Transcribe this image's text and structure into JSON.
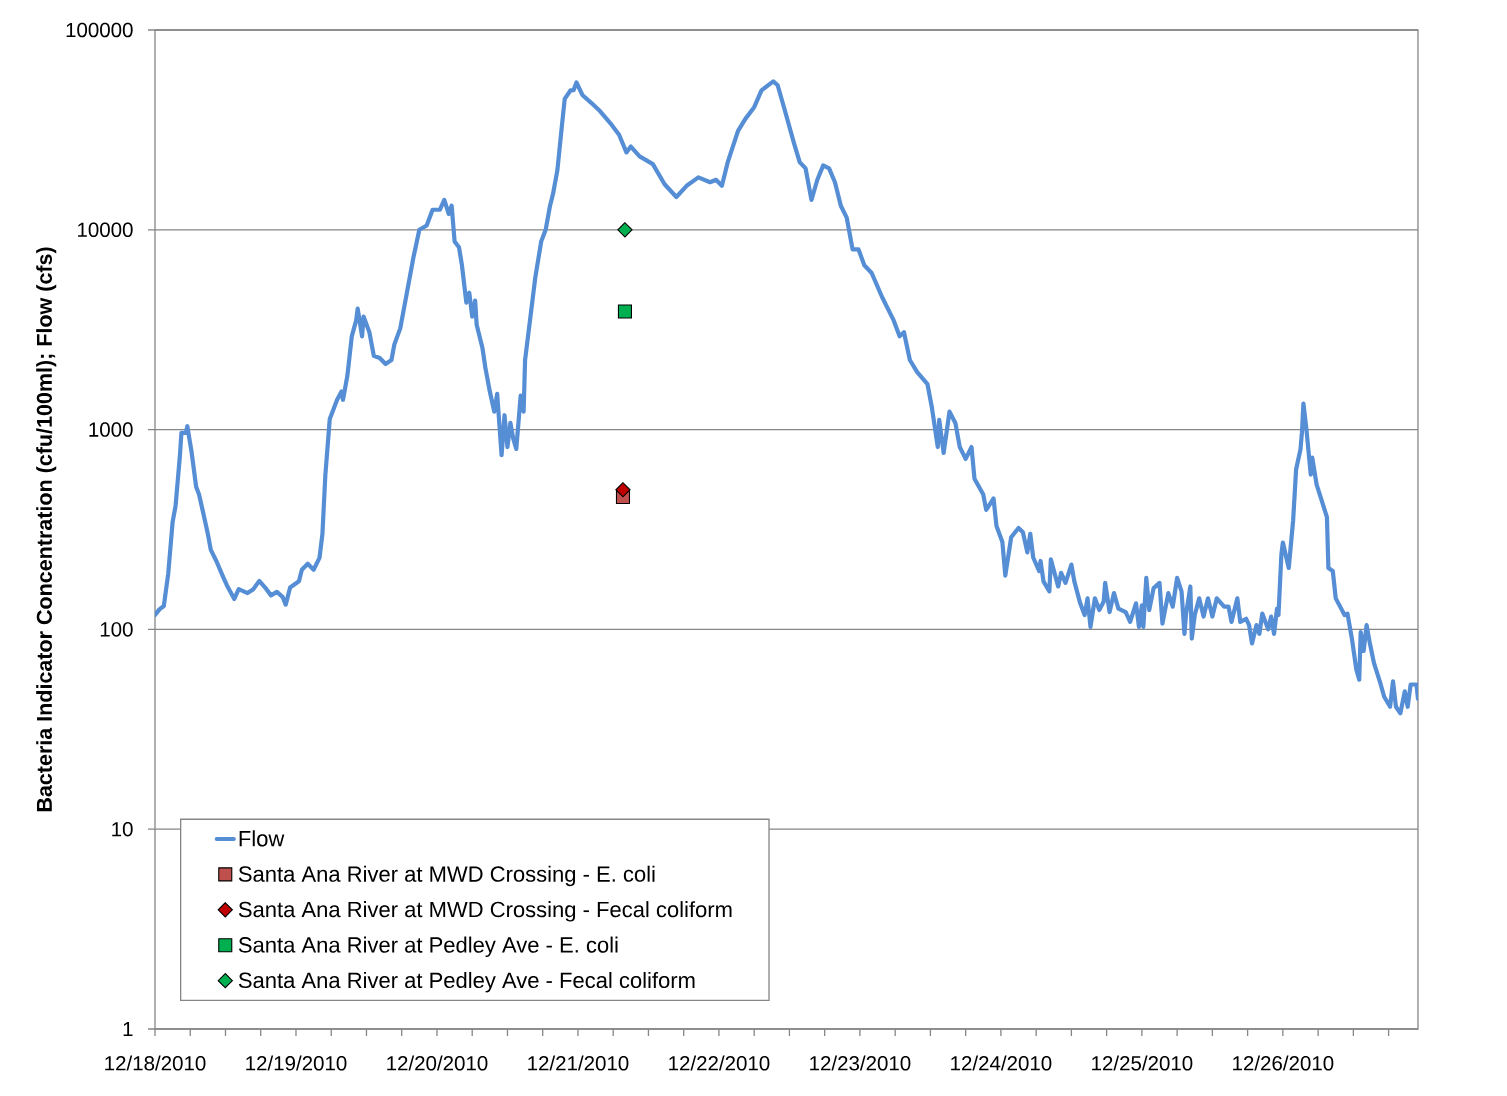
{
  "chart_data": {
    "type": "line",
    "ylabel": "Bacteria Indicator Concentration (cfu/100ml); Flow (cfs)",
    "xlim": [
      "2010-12-18",
      "2010-12-26T23:00"
    ],
    "ylim": [
      1,
      100000
    ],
    "log": "y",
    "grid": "y",
    "legend": "bottom left",
    "yticks": [
      1,
      10,
      100,
      1000,
      10000,
      100000
    ],
    "xticks": [
      {
        "value": "2010-12-18",
        "label": "12/18/2010"
      },
      {
        "value": "2010-12-18T06:00",
        "label": null
      },
      {
        "value": "2010-12-18T12:00",
        "label": null
      },
      {
        "value": "2010-12-18T18:00",
        "label": null
      },
      {
        "value": "2010-12-19",
        "label": "12/19/2010"
      },
      {
        "value": "2010-12-19T06:00",
        "label": null
      },
      {
        "value": "2010-12-19T12:00",
        "label": null
      },
      {
        "value": "2010-12-19T18:00",
        "label": null
      },
      {
        "value": "2010-12-20",
        "label": "12/20/2010"
      },
      {
        "value": "2010-12-20T06:00",
        "label": null
      },
      {
        "value": "2010-12-20T12:00",
        "label": null
      },
      {
        "value": "2010-12-20T18:00",
        "label": null
      },
      {
        "value": "2010-12-21",
        "label": "12/21/2010"
      },
      {
        "value": "2010-12-21T06:00",
        "label": null
      },
      {
        "value": "2010-12-21T12:00",
        "label": null
      },
      {
        "value": "2010-12-21T18:00",
        "label": null
      },
      {
        "value": "2010-12-22",
        "label": "12/22/2010"
      },
      {
        "value": "2010-12-22T06:00",
        "label": null
      },
      {
        "value": "2010-12-22T12:00",
        "label": null
      },
      {
        "value": "2010-12-22T18:00",
        "label": null
      },
      {
        "value": "2010-12-23",
        "label": "12/23/2010"
      },
      {
        "value": "2010-12-23T06:00",
        "label": null
      },
      {
        "value": "2010-12-23T12:00",
        "label": null
      },
      {
        "value": "2010-12-23T18:00",
        "label": null
      },
      {
        "value": "2010-12-24",
        "label": "12/24/2010"
      },
      {
        "value": "2010-12-24T06:00",
        "label": null
      },
      {
        "value": "2010-12-24T12:00",
        "label": null
      },
      {
        "value": "2010-12-24T18:00",
        "label": null
      },
      {
        "value": "2010-12-25",
        "label": "12/25/2010"
      },
      {
        "value": "2010-12-25T06:00",
        "label": null
      },
      {
        "value": "2010-12-25T12:00",
        "label": null
      },
      {
        "value": "2010-12-25T18:00",
        "label": null
      },
      {
        "value": "2010-12-26",
        "label": "12/26/2010"
      },
      {
        "value": "2010-12-26T06:00",
        "label": null
      },
      {
        "value": "2010-12-26T12:00",
        "label": null
      },
      {
        "value": "2010-12-26T18:00",
        "label": null
      }
    ],
    "series": [
      {
        "name": "Flow",
        "color": "#558ed5",
        "marker": "none",
        "x": [
          "2010-12-18T00:00",
          "2010-12-18T00:45",
          "2010-12-18T01:30",
          "2010-12-18T02:15",
          "2010-12-18T03:00",
          "2010-12-18T03:30",
          "2010-12-18T04:15",
          "2010-12-18T04:30",
          "2010-12-18T05:15",
          "2010-12-18T05:30",
          "2010-12-18T06:15",
          "2010-12-18T07:00",
          "2010-12-18T07:30",
          "2010-12-18T08:15",
          "2010-12-18T09:00",
          "2010-12-18T09:30",
          "2010-12-18T10:30",
          "2010-12-18T11:30",
          "2010-12-18T12:15",
          "2010-12-18T13:30",
          "2010-12-18T14:15",
          "2010-12-18T15:45",
          "2010-12-18T16:45",
          "2010-12-18T17:45",
          "2010-12-18T18:45",
          "2010-12-18T19:45",
          "2010-12-18T20:45",
          "2010-12-18T21:45",
          "2010-12-18T22:15",
          "2010-12-18T23:00",
          "2010-12-19T00:30",
          "2010-12-19T01:00",
          "2010-12-19T02:00",
          "2010-12-19T03:00",
          "2010-12-19T04:00",
          "2010-12-19T04:30",
          "2010-12-19T05:00",
          "2010-12-19T05:45",
          "2010-12-19T06:30",
          "2010-12-19T07:00",
          "2010-12-19T07:45",
          "2010-12-19T08:00",
          "2010-12-19T08:45",
          "2010-12-19T09:30",
          "2010-12-19T10:15",
          "2010-12-19T10:30",
          "2010-12-19T11:15",
          "2010-12-19T11:30",
          "2010-12-19T12:30",
          "2010-12-19T13:15",
          "2010-12-19T14:15",
          "2010-12-19T15:15",
          "2010-12-19T16:15",
          "2010-12-19T16:45",
          "2010-12-19T17:45",
          "2010-12-19T18:45",
          "2010-12-19T20:00",
          "2010-12-19T21:00",
          "2010-12-19T22:15",
          "2010-12-19T23:15",
          "2010-12-20T00:30",
          "2010-12-20T01:15",
          "2010-12-20T02:00",
          "2010-12-20T02:30",
          "2010-12-20T03:00",
          "2010-12-20T03:45",
          "2010-12-20T04:15",
          "2010-12-20T05:00",
          "2010-12-20T05:30",
          "2010-12-20T06:00",
          "2010-12-20T06:30",
          "2010-12-20T06:45",
          "2010-12-20T07:45",
          "2010-12-20T08:15",
          "2010-12-20T09:00",
          "2010-12-20T09:45",
          "2010-12-20T10:15",
          "2010-12-20T11:00",
          "2010-12-20T11:30",
          "2010-12-20T12:00",
          "2010-12-20T12:30",
          "2010-12-20T13:00",
          "2010-12-20T13:30",
          "2010-12-20T14:15",
          "2010-12-20T14:45",
          "2010-12-20T15:00",
          "2010-12-20T15:45",
          "2010-12-20T16:45",
          "2010-12-20T17:45",
          "2010-12-20T18:30",
          "2010-12-20T19:15",
          "2010-12-20T19:45",
          "2010-12-20T20:30",
          "2010-12-20T21:15",
          "2010-12-20T21:45",
          "2010-12-20T22:45",
          "2010-12-20T23:15",
          "2010-12-20T23:45",
          "2010-12-21T00:45",
          "2010-12-21T02:15",
          "2010-12-21T03:45",
          "2010-12-21T05:45",
          "2010-12-21T07:00",
          "2010-12-21T08:15",
          "2010-12-21T09:00",
          "2010-12-21T10:30",
          "2010-12-21T12:45",
          "2010-12-21T14:45",
          "2010-12-21T16:45",
          "2010-12-21T18:30",
          "2010-12-21T20:30",
          "2010-12-21T22:30",
          "2010-12-21T23:30",
          "2010-12-22T00:30",
          "2010-12-22T01:30",
          "2010-12-22T03:15",
          "2010-12-22T04:30",
          "2010-12-22T06:00",
          "2010-12-22T07:15",
          "2010-12-22T09:15",
          "2010-12-22T10:00",
          "2010-12-22T11:15",
          "2010-12-22T12:45",
          "2010-12-22T13:45",
          "2010-12-22T14:45",
          "2010-12-22T15:45",
          "2010-12-22T16:45",
          "2010-12-22T17:45",
          "2010-12-22T18:45",
          "2010-12-22T19:45",
          "2010-12-22T20:45",
          "2010-12-22T21:45",
          "2010-12-22T22:45",
          "2010-12-22T23:45",
          "2010-12-23T00:45",
          "2010-12-23T02:00",
          "2010-12-23T03:45",
          "2010-12-23T04:45",
          "2010-12-23T05:45",
          "2010-12-23T06:45",
          "2010-12-23T07:30",
          "2010-12-23T08:30",
          "2010-12-23T09:45",
          "2010-12-23T11:30",
          "2010-12-23T12:15",
          "2010-12-23T13:15",
          "2010-12-23T13:30",
          "2010-12-23T14:15",
          "2010-12-23T15:15",
          "2010-12-23T16:15",
          "2010-12-23T17:00",
          "2010-12-23T18:00",
          "2010-12-23T19:00",
          "2010-12-23T19:30",
          "2010-12-23T21:00",
          "2010-12-23T21:30",
          "2010-12-23T22:45",
          "2010-12-23T23:15",
          "2010-12-24T00:15",
          "2010-12-24T00:45",
          "2010-12-24T01:45",
          "2010-12-24T03:00",
          "2010-12-24T03:45",
          "2010-12-24T04:30",
          "2010-12-24T05:00",
          "2010-12-24T05:30",
          "2010-12-24T06:30",
          "2010-12-24T06:45",
          "2010-12-24T07:15",
          "2010-12-24T08:15",
          "2010-12-24T08:30",
          "2010-12-24T09:45",
          "2010-12-24T10:15",
          "2010-12-24T11:00",
          "2010-12-24T12:00",
          "2010-12-24T12:30",
          "2010-12-24T13:30",
          "2010-12-24T14:15",
          "2010-12-24T14:45",
          "2010-12-24T15:15",
          "2010-12-24T16:00",
          "2010-12-24T16:45",
          "2010-12-24T17:30",
          "2010-12-24T17:45",
          "2010-12-24T18:30",
          "2010-12-24T19:15",
          "2010-12-24T20:00",
          "2010-12-24T21:15",
          "2010-12-24T22:00",
          "2010-12-24T23:00",
          "2010-12-24T23:30",
          "2010-12-25T00:00",
          "2010-12-25T00:15",
          "2010-12-25T00:45",
          "2010-12-25T01:15",
          "2010-12-25T02:00",
          "2010-12-25T03:00",
          "2010-12-25T03:30",
          "2010-12-25T04:30",
          "2010-12-25T05:15",
          "2010-12-25T06:00",
          "2010-12-25T06:45",
          "2010-12-25T07:15",
          "2010-12-25T07:30",
          "2010-12-25T08:15",
          "2010-12-25T08:30",
          "2010-12-25T09:00",
          "2010-12-25T09:45",
          "2010-12-25T10:30",
          "2010-12-25T11:15",
          "2010-12-25T12:00",
          "2010-12-25T12:45",
          "2010-12-25T14:00",
          "2010-12-25T14:45",
          "2010-12-25T15:15",
          "2010-12-25T16:15",
          "2010-12-25T16:45",
          "2010-12-25T17:45",
          "2010-12-25T18:15",
          "2010-12-25T18:45",
          "2010-12-25T19:30",
          "2010-12-25T20:00",
          "2010-12-25T20:30",
          "2010-12-25T21:30",
          "2010-12-25T22:00",
          "2010-12-25T22:30",
          "2010-12-25T23:00",
          "2010-12-25T23:15",
          "2010-12-25T23:45",
          "2010-12-26T00:00",
          "2010-12-26T01:00",
          "2010-12-26T01:45",
          "2010-12-26T02:15",
          "2010-12-26T03:00",
          "2010-12-26T03:15",
          "2010-12-26T03:30",
          "2010-12-26T04:00",
          "2010-12-26T04:45",
          "2010-12-26T05:00",
          "2010-12-26T05:45",
          "2010-12-26T06:45",
          "2010-12-26T07:30",
          "2010-12-26T07:45",
          "2010-12-26T08:30",
          "2010-12-26T09:00",
          "2010-12-26T09:45",
          "2010-12-26T10:30",
          "2010-12-26T11:00",
          "2010-12-26T11:45",
          "2010-12-26T12:30",
          "2010-12-26T13:00",
          "2010-12-26T13:15",
          "2010-12-26T13:45",
          "2010-12-26T14:15",
          "2010-12-26T14:45",
          "2010-12-26T15:30",
          "2010-12-26T16:30",
          "2010-12-26T17:15",
          "2010-12-26T18:15",
          "2010-12-26T18:45",
          "2010-12-26T19:15",
          "2010-12-26T20:00",
          "2010-12-26T20:45",
          "2010-12-26T21:15",
          "2010-12-26T21:45",
          "2010-12-26T22:45",
          "2010-12-26T23:00"
        ],
        "values": [
          118,
          126,
          131,
          190,
          345,
          415,
          746,
          962,
          962,
          1040,
          764,
          518,
          473,
          378,
          300,
          250,
          218,
          186,
          166,
          142,
          159,
          152,
          159,
          175,
          162,
          148,
          154,
          145,
          133,
          162,
          174,
          199,
          213,
          199,
          228,
          300,
          594,
          1130,
          1290,
          1410,
          1550,
          1410,
          1860,
          2930,
          3520,
          4030,
          2930,
          3680,
          3070,
          2340,
          2280,
          2130,
          2230,
          2670,
          3210,
          4620,
          7290,
          10000,
          10500,
          12600,
          12600,
          14100,
          12000,
          13200,
          8750,
          8170,
          6650,
          4320,
          4840,
          3680,
          4420,
          3360,
          2550,
          2030,
          1550,
          1230,
          1510,
          746,
          1180,
          818,
          1080,
          897,
          800,
          1480,
          1230,
          2230,
          3360,
          5800,
          8750,
          10000,
          13200,
          15100,
          19900,
          32800,
          45200,
          49900,
          50000,
          54600,
          47300,
          43200,
          39300,
          33500,
          29900,
          24400,
          26100,
          23300,
          21300,
          16900,
          14600,
          16600,
          18300,
          17300,
          17800,
          16600,
          21800,
          31300,
          35900,
          41100,
          49900,
          55300,
          52900,
          39300,
          27300,
          21800,
          20300,
          14100,
          17800,
          21000,
          20300,
          17300,
          13200,
          11500,
          7990,
          7990,
          6650,
          6080,
          4620,
          4030,
          3520,
          2930,
          3070,
          2230,
          1940,
          1690,
          1290,
          818,
          1120,
          764,
          1230,
          1080,
          818,
          713,
          818,
          568,
          473,
          396,
          452,
          329,
          274,
          186,
          289,
          322,
          306,
          243,
          301,
          229,
          196,
          220,
          174,
          155,
          224,
          164,
          192,
          171,
          211,
          174,
          135,
          118,
          143,
          103,
          143,
          125,
          138,
          171,
          122,
          152,
          127,
          122,
          109,
          135,
          103,
          132,
          103,
          181,
          125,
          161,
          171,
          107,
          152,
          130,
          181,
          155,
          95,
          118,
          164,
          90,
          118,
          143,
          116,
          143,
          116,
          143,
          130,
          130,
          109,
          143,
          109,
          113,
          105,
          85,
          105,
          95,
          120,
          100,
          116,
          95,
          127,
          118,
          238,
          272,
          203,
          352,
          631,
          798,
          971,
          1350,
          1010,
          595,
          724,
          530,
          428,
          365,
          203,
          196,
          143,
          130,
          118,
          120,
          90,
          63,
          56,
          97,
          78,
          105,
          87,
          68,
          55,
          46,
          41,
          55,
          41,
          38,
          49,
          41,
          53,
          53,
          45
        ]
      },
      {
        "name": "Santa Ana River at MWD Crossing - E. coli",
        "type": "scatter",
        "color": "#c0504d",
        "marker": "square",
        "x": [
          "2010-12-21T07:40"
        ],
        "values": [
          460
        ]
      },
      {
        "name": "Santa Ana River at MWD Crossing - Fecal coliform",
        "type": "scatter",
        "color": "#c00000",
        "marker": "diamond",
        "x": [
          "2010-12-21T07:40"
        ],
        "values": [
          500
        ]
      },
      {
        "name": "Santa Ana River at Pedley Ave - E. coli",
        "type": "scatter",
        "color": "#00b050",
        "marker": "square",
        "x": [
          "2010-12-21T08:00"
        ],
        "values": [
          3900
        ]
      },
      {
        "name": "Santa Ana River at Pedley Ave - Fecal coliform",
        "type": "scatter",
        "color": "#00b050",
        "marker": "diamond",
        "x": [
          "2010-12-21T08:00"
        ],
        "values": [
          10000
        ]
      }
    ]
  }
}
